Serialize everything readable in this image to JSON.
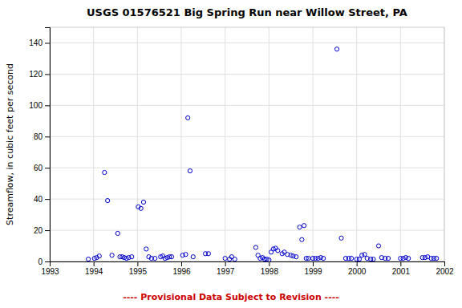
{
  "chart_data": {
    "type": "scatter",
    "title": "USGS 01576521 Big Spring Run near Willow Street, PA",
    "ylabel": "Streamflow, in cubic feet per second",
    "annotations": [
      {
        "text": "---- Provisional Data Subject to Revision ----",
        "color": "#cc0000"
      }
    ],
    "color": "#0000cc",
    "marker": "open-circle",
    "grid": true,
    "xlim": [
      1993,
      2002
    ],
    "ylim": [
      0,
      150
    ],
    "xticks": [
      1993,
      1994,
      1995,
      1996,
      1997,
      1998,
      1999,
      2000,
      2001,
      2002
    ],
    "yticks": [
      0,
      20,
      40,
      60,
      80,
      100,
      120,
      140
    ],
    "x": [
      1993.88,
      1994.02,
      1994.07,
      1994.13,
      1994.25,
      1994.32,
      1994.42,
      1994.55,
      1994.6,
      1994.65,
      1994.7,
      1994.75,
      1994.8,
      1994.87,
      1995.02,
      1995.08,
      1995.14,
      1995.2,
      1995.26,
      1995.32,
      1995.4,
      1995.53,
      1995.58,
      1995.63,
      1995.68,
      1995.73,
      1995.78,
      1996.03,
      1996.1,
      1996.15,
      1996.2,
      1996.27,
      1996.55,
      1996.62,
      1997.0,
      1997.1,
      1997.15,
      1997.22,
      1997.7,
      1997.75,
      1997.8,
      1997.85,
      1997.9,
      1997.95,
      1998.0,
      1998.05,
      1998.1,
      1998.15,
      1998.2,
      1998.3,
      1998.35,
      1998.42,
      1998.5,
      1998.55,
      1998.62,
      1998.7,
      1998.75,
      1998.8,
      1998.85,
      1998.9,
      1999.0,
      1999.06,
      1999.12,
      1999.18,
      1999.24,
      1999.55,
      1999.65,
      1999.75,
      1999.82,
      1999.88,
      2000.0,
      2000.06,
      2000.12,
      2000.18,
      2000.24,
      2000.32,
      2000.38,
      2000.5,
      2000.57,
      2000.65,
      2000.72,
      2001.0,
      2001.06,
      2001.12,
      2001.18,
      2001.5,
      2001.56,
      2001.62,
      2001.7,
      2001.76,
      2001.82
    ],
    "values": [
      1.5,
      2.0,
      2.5,
      3.5,
      57.0,
      39.0,
      4.0,
      18.0,
      3.0,
      3.0,
      2.5,
      2.0,
      2.5,
      3.0,
      35.0,
      34.0,
      38.0,
      8.0,
      3.0,
      2.0,
      2.0,
      3.0,
      3.5,
      2.0,
      2.5,
      3.0,
      3.0,
      4.0,
      4.5,
      92.0,
      58.0,
      3.0,
      5.0,
      5.0,
      2.0,
      1.5,
      3.0,
      1.5,
      9.0,
      4.0,
      2.0,
      2.5,
      1.5,
      1.5,
      1.0,
      6.0,
      8.0,
      8.5,
      7.0,
      5.0,
      6.0,
      4.5,
      4.0,
      3.5,
      3.0,
      22.0,
      14.0,
      23.0,
      2.0,
      2.0,
      2.0,
      2.0,
      2.0,
      2.5,
      2.0,
      136.0,
      15.0,
      2.0,
      2.0,
      2.0,
      1.5,
      1.5,
      4.0,
      4.5,
      2.0,
      1.5,
      1.5,
      10.0,
      2.5,
      2.0,
      2.0,
      2.0,
      2.0,
      2.5,
      2.0,
      2.5,
      2.5,
      3.0,
      2.0,
      2.0,
      2.0
    ]
  }
}
